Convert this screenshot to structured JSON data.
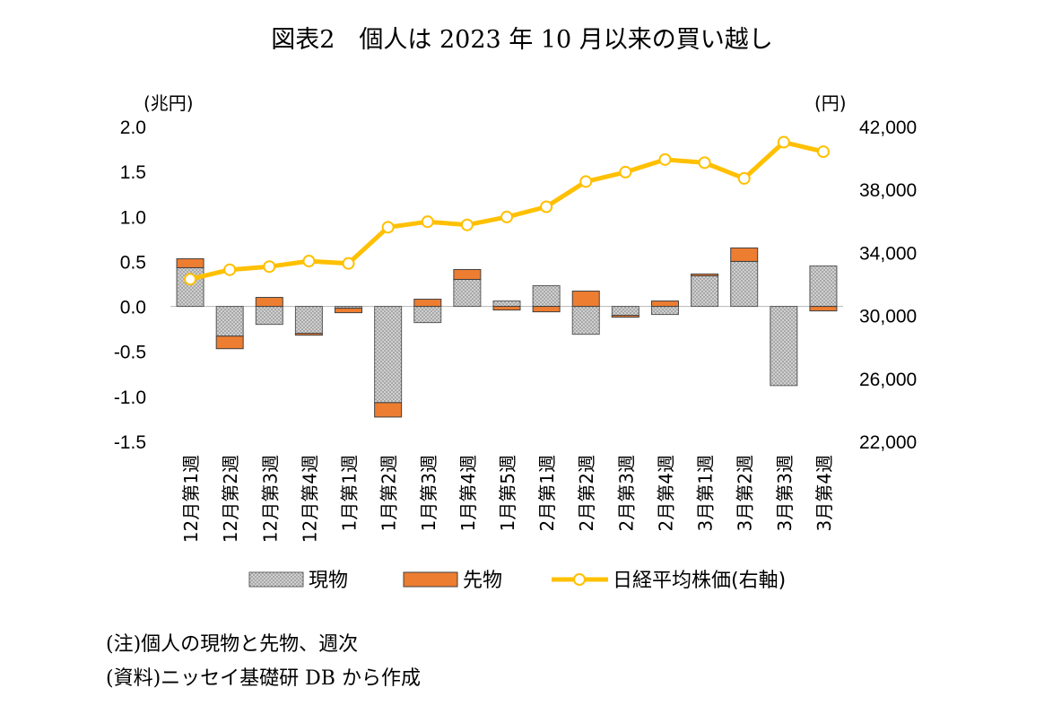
{
  "chart_data": {
    "type": "bar",
    "title": "図表2　個人は 2023 年 10 月以来の買い越し",
    "left_axis": {
      "unit_label": "(兆円)",
      "min": -1.5,
      "max": 2.0,
      "step": 0.5,
      "tick_labels": [
        "2.0",
        "1.5",
        "1.0",
        "0.5",
        "0.0",
        "-0.5",
        "-1.0",
        "-1.5"
      ]
    },
    "right_axis": {
      "unit_label": "(円)",
      "min": 22000,
      "max": 42000,
      "step": 4000,
      "tick_labels": [
        "42,000",
        "38,000",
        "34,000",
        "30,000",
        "26,000",
        "22,000"
      ]
    },
    "categories": [
      "12月第1週",
      "12月第2週",
      "12月第3週",
      "12月第4週",
      "1月第1週",
      "1月第2週",
      "1月第3週",
      "1月第4週",
      "1月第5週",
      "2月第1週",
      "2月第2週",
      "2月第3週",
      "2月第4週",
      "3月第1週",
      "3月第2週",
      "3月第3週",
      "3月第4週"
    ],
    "series": [
      {
        "name": "現物",
        "kind": "bar",
        "axis": "left",
        "color": "#a6a6a6",
        "values": [
          0.43,
          -0.33,
          -0.2,
          -0.3,
          -0.02,
          -1.07,
          -0.18,
          0.3,
          0.06,
          0.23,
          -0.31,
          -0.1,
          -0.09,
          0.34,
          0.5,
          -0.88,
          0.45
        ]
      },
      {
        "name": "先物",
        "kind": "bar",
        "axis": "left",
        "color": "#ed7d31",
        "values": [
          0.1,
          -0.14,
          0.1,
          -0.02,
          -0.05,
          -0.16,
          0.08,
          0.11,
          -0.04,
          -0.06,
          0.17,
          -0.02,
          0.06,
          0.02,
          0.15,
          0.0,
          -0.05
        ]
      },
      {
        "name": "日経平均株価(右軸)",
        "kind": "line",
        "axis": "right",
        "color": "#ffc000",
        "values": [
          32300,
          32900,
          33100,
          33450,
          33300,
          35600,
          35950,
          35750,
          36250,
          36900,
          38500,
          39100,
          39900,
          39700,
          38700,
          41000,
          40400
        ]
      }
    ],
    "legend_position": "bottom"
  },
  "notes": {
    "note1": "(注)個人の現物と先物、週次",
    "note2": "(資料)ニッセイ基礎研 DB から作成"
  }
}
